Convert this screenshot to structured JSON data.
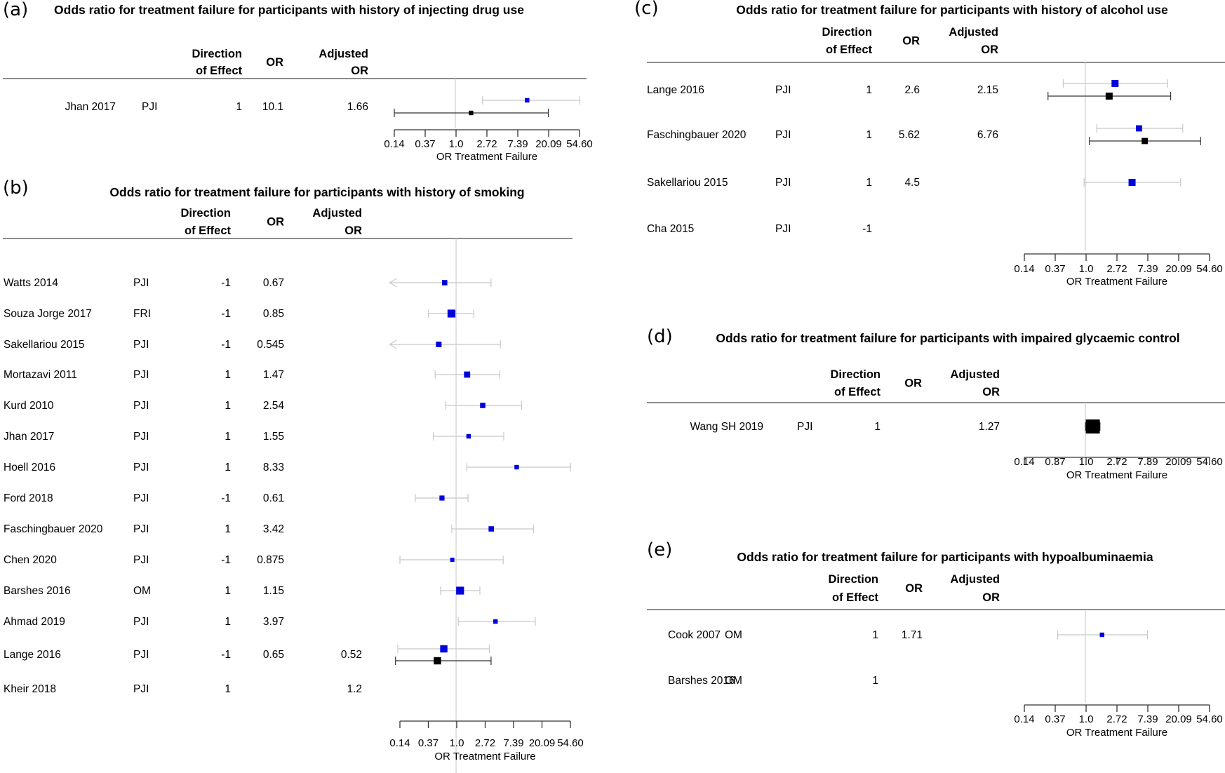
{
  "figure": {
    "columns": {
      "direction_line1": "Direction",
      "direction_line2": "of Effect",
      "or": "OR",
      "adjusted_line1": "Adjusted",
      "adjusted_line2": "OR"
    },
    "legend_colors": {
      "unadjusted": "#0000dd",
      "adjusted": "#000000",
      "unadjusted_ci": "#c8c8c8",
      "adjusted_ci": "#333333",
      "reference_line": "#d9d9d9"
    }
  },
  "chart_data": [
    {
      "id": "a",
      "type": "forest",
      "label": "(a)",
      "title": "Odds ratio for treatment failure for participants with history of injecting drug use",
      "xlabel": "OR Treatment Failure",
      "xscale": "log",
      "xlim": [
        0.14,
        54.6
      ],
      "xticks": [
        "0.14",
        "0.37",
        "1.0",
        "2.72",
        "7.39",
        "20.09",
        "54.60"
      ],
      "reference": 1.0,
      "rows": [
        {
          "study": "Jhan 2017",
          "type": "PJI",
          "direction": "1",
          "or": "10.1",
          "adjusted_or": "1.66",
          "or_est": 10.1,
          "or_ci": [
            2.4,
            54.6
          ],
          "or_weight": 0.3,
          "adj_est": 1.66,
          "adj_ci": [
            0.14,
            20.0
          ],
          "adj_weight": 0.3
        }
      ]
    },
    {
      "id": "b",
      "type": "forest",
      "label": "(b)",
      "title": "Odds ratio for treatment failure for participants with history of smoking",
      "xlabel": "OR Treatment Failure",
      "xscale": "log",
      "xlim": [
        0.14,
        54.6
      ],
      "xticks": [
        "0.14",
        "0.37",
        "1.0",
        "2.72",
        "7.39",
        "20.09",
        "54.60"
      ],
      "reference": 1.0,
      "rows": [
        {
          "study": "Watts 2014",
          "type": "PJI",
          "direction": "-1",
          "or": "0.67",
          "adjusted_or": "",
          "or_est": 0.67,
          "or_ci": [
            0.05,
            3.4
          ],
          "or_arrow_left": true,
          "or_weight": 0.45
        },
        {
          "study": "Souza Jorge 2017",
          "type": "FRI",
          "direction": "-1",
          "or": "0.85",
          "adjusted_or": "",
          "or_est": 0.85,
          "or_ci": [
            0.38,
            1.86
          ],
          "or_weight": 0.9
        },
        {
          "study": "Sakellariou 2015",
          "type": "PJI",
          "direction": "-1",
          "or": "0.545",
          "adjusted_or": "",
          "or_est": 0.545,
          "or_ci": [
            0.05,
            4.7
          ],
          "or_arrow_left": true,
          "or_weight": 0.5
        },
        {
          "study": "Mortazavi 2011",
          "type": "PJI",
          "direction": "1",
          "or": "1.47",
          "adjusted_or": "",
          "or_est": 1.47,
          "or_ci": [
            0.48,
            4.6
          ],
          "or_weight": 0.6
        },
        {
          "study": "Kurd 2010",
          "type": "PJI",
          "direction": "1",
          "or": "2.54",
          "adjusted_or": "",
          "or_est": 2.54,
          "or_ci": [
            0.69,
            9.9
          ],
          "or_weight": 0.45
        },
        {
          "study": "Jhan 2017",
          "type": "PJI",
          "direction": "1",
          "or": "1.55",
          "adjusted_or": "",
          "or_est": 1.55,
          "or_ci": [
            0.45,
            5.3
          ],
          "or_weight": 0.3
        },
        {
          "study": "Hoell 2016",
          "type": "PJI",
          "direction": "1",
          "or": "8.33",
          "adjusted_or": "",
          "or_est": 8.33,
          "or_ci": [
            1.45,
            55.0
          ],
          "or_weight": 0.3
        },
        {
          "study": "Ford 2018",
          "type": "PJI",
          "direction": "-1",
          "or": "0.61",
          "adjusted_or": "",
          "or_est": 0.61,
          "or_ci": [
            0.24,
            1.52
          ],
          "or_weight": 0.4
        },
        {
          "study": "Faschingbauer 2020",
          "type": "PJI",
          "direction": "1",
          "or": "3.42",
          "adjusted_or": "",
          "or_est": 3.42,
          "or_ci": [
            0.86,
            15.0
          ],
          "or_weight": 0.45
        },
        {
          "study": "Chen 2020",
          "type": "PJI",
          "direction": "-1",
          "or": "0.875",
          "adjusted_or": "",
          "or_est": 0.875,
          "or_ci": [
            0.14,
            5.2
          ],
          "or_weight": 0.25
        },
        {
          "study": "Barshes 2016",
          "type": "OM",
          "direction": "1",
          "or": "1.15",
          "adjusted_or": "",
          "or_est": 1.15,
          "or_ci": [
            0.58,
            2.3
          ],
          "or_weight": 0.9
        },
        {
          "study": "Ahmad 2019",
          "type": "PJI",
          "direction": "1",
          "or": "3.97",
          "adjusted_or": "",
          "or_est": 3.97,
          "or_ci": [
            1.08,
            16.0
          ],
          "or_weight": 0.3
        },
        {
          "study": "Lange 2016",
          "type": "PJI",
          "direction": "-1",
          "or": "0.65",
          "adjusted_or": "0.52",
          "or_est": 0.65,
          "or_ci": [
            0.13,
            3.2
          ],
          "or_weight": 0.8,
          "adj_est": 0.52,
          "adj_ci": [
            0.08,
            3.4
          ],
          "adj_weight": 0.8
        },
        {
          "study": "Kheir 2018",
          "type": "PJI",
          "direction": "1",
          "or": "",
          "adjusted_or": "1.2"
        }
      ]
    },
    {
      "id": "c",
      "type": "forest",
      "label": "(c)",
      "title": "Odds ratio for treatment failure for participants with history of alcohol use",
      "xlabel": "OR Treatment Failure",
      "xscale": "log",
      "xlim": [
        0.14,
        54.6
      ],
      "xticks": [
        "0.14",
        "0.37",
        "1.0",
        "2.72",
        "7.39",
        "20.09",
        "54.60"
      ],
      "reference": 1.0,
      "rows": [
        {
          "study": "Lange 2016",
          "type": "PJI",
          "direction": "1",
          "or": "2.6",
          "adjusted_or": "2.15",
          "or_est": 2.6,
          "or_ci": [
            0.49,
            14.2
          ],
          "or_weight": 0.75,
          "adj_est": 2.15,
          "adj_ci": [
            0.3,
            15.6
          ],
          "adj_weight": 0.75
        },
        {
          "study": "Faschingbauer 2020",
          "type": "PJI",
          "direction": "1",
          "or": "5.62",
          "adjusted_or": "6.76",
          "or_est": 5.62,
          "or_ci": [
            1.44,
            23.0
          ],
          "or_weight": 0.6,
          "adj_est": 6.76,
          "adj_ci": [
            1.14,
            41.0
          ],
          "adj_weight": 0.6
        },
        {
          "study": "Sakellariou 2015",
          "type": "PJI",
          "direction": "1",
          "or": "4.5",
          "adjusted_or": "",
          "or_est": 4.5,
          "or_ci": [
            0.96,
            21.5
          ],
          "or_weight": 0.75
        },
        {
          "study": "Cha 2015",
          "type": "PJI",
          "direction": "-1",
          "or": "",
          "adjusted_or": ""
        }
      ]
    },
    {
      "id": "d",
      "type": "forest",
      "label": "(d)",
      "title": "Odds ratio for treatment failure for participants with impaired glycaemic control",
      "xlabel": "OR Treatment Failure",
      "xscale": "log",
      "xlim": [
        0.14,
        54.6
      ],
      "xticks": [
        "0.14",
        "0.37",
        "1.0",
        "2.72",
        "7.39",
        "20.09",
        "54.60"
      ],
      "reference": 1.0,
      "rows": [
        {
          "study": "Wang SH 2019",
          "type": "PJI",
          "direction": "1",
          "or": "",
          "adjusted_or": "1.27",
          "adj_est": 1.27,
          "adj_ci": [
            1.0,
            1.6
          ],
          "adj_weight": 2.0
        }
      ]
    },
    {
      "id": "e",
      "type": "forest",
      "label": "(e)",
      "title": "Odds ratio for treatment failure for participants with hypoalbuminaemia",
      "xlabel": "OR Treatment Failure",
      "xscale": "log",
      "xlim": [
        0.14,
        54.6
      ],
      "xticks": [
        "0.14",
        "0.37",
        "1.0",
        "2.72",
        "7.39",
        "20.09",
        "54.60"
      ],
      "reference": 1.0,
      "rows": [
        {
          "study": "Cook 2007",
          "type": "OM",
          "direction": "1",
          "or": "1.71",
          "adjusted_or": "",
          "or_est": 1.71,
          "or_ci": [
            0.41,
            7.4
          ],
          "or_weight": 0.3
        },
        {
          "study": "Barshes 2016",
          "type": "OM",
          "direction": "1",
          "or": "",
          "adjusted_or": ""
        }
      ]
    }
  ]
}
